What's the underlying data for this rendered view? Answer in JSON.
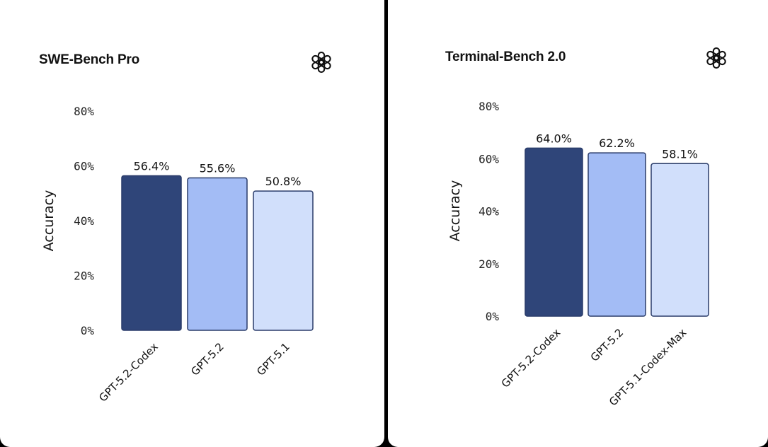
{
  "chart_data": [
    {
      "type": "bar",
      "title": "SWE-Bench Pro",
      "ylabel": "Accuracy",
      "xlabel": "",
      "categories": [
        "GPT-5.2-Codex",
        "GPT-5.2",
        "GPT-5.1"
      ],
      "values": [
        56.4,
        55.6,
        50.8
      ],
      "value_labels": [
        "56.4%",
        "55.6%",
        "50.8%"
      ],
      "bar_colors": [
        "#2f4579",
        "#a3bcf5",
        "#d1dffb"
      ],
      "yticks": [
        0,
        20,
        40,
        60,
        80
      ],
      "ytick_labels": [
        "0%",
        "20%",
        "40%",
        "60%",
        "80%"
      ],
      "ylim": [
        0,
        80
      ],
      "grid": false,
      "logo_icon": "openai-logo-icon"
    },
    {
      "type": "bar",
      "title": "Terminal-Bench 2.0",
      "ylabel": "Accuracy",
      "xlabel": "",
      "categories": [
        "GPT-5.2-Codex",
        "GPT-5.2",
        "GPT-5.1-Codex-Max"
      ],
      "values": [
        64.0,
        62.2,
        58.1
      ],
      "value_labels": [
        "64.0%",
        "62.2%",
        "58.1%"
      ],
      "bar_colors": [
        "#2f4579",
        "#a3bcf5",
        "#d1dffb"
      ],
      "yticks": [
        0,
        20,
        40,
        60,
        80
      ],
      "ytick_labels": [
        "0%",
        "20%",
        "40%",
        "60%",
        "80%"
      ],
      "ylim": [
        0,
        80
      ],
      "grid": false,
      "logo_icon": "openai-logo-icon"
    }
  ],
  "colors": {
    "background": "#000000",
    "panel": "#ffffff",
    "bar_stroke": "#2a3c6a"
  }
}
